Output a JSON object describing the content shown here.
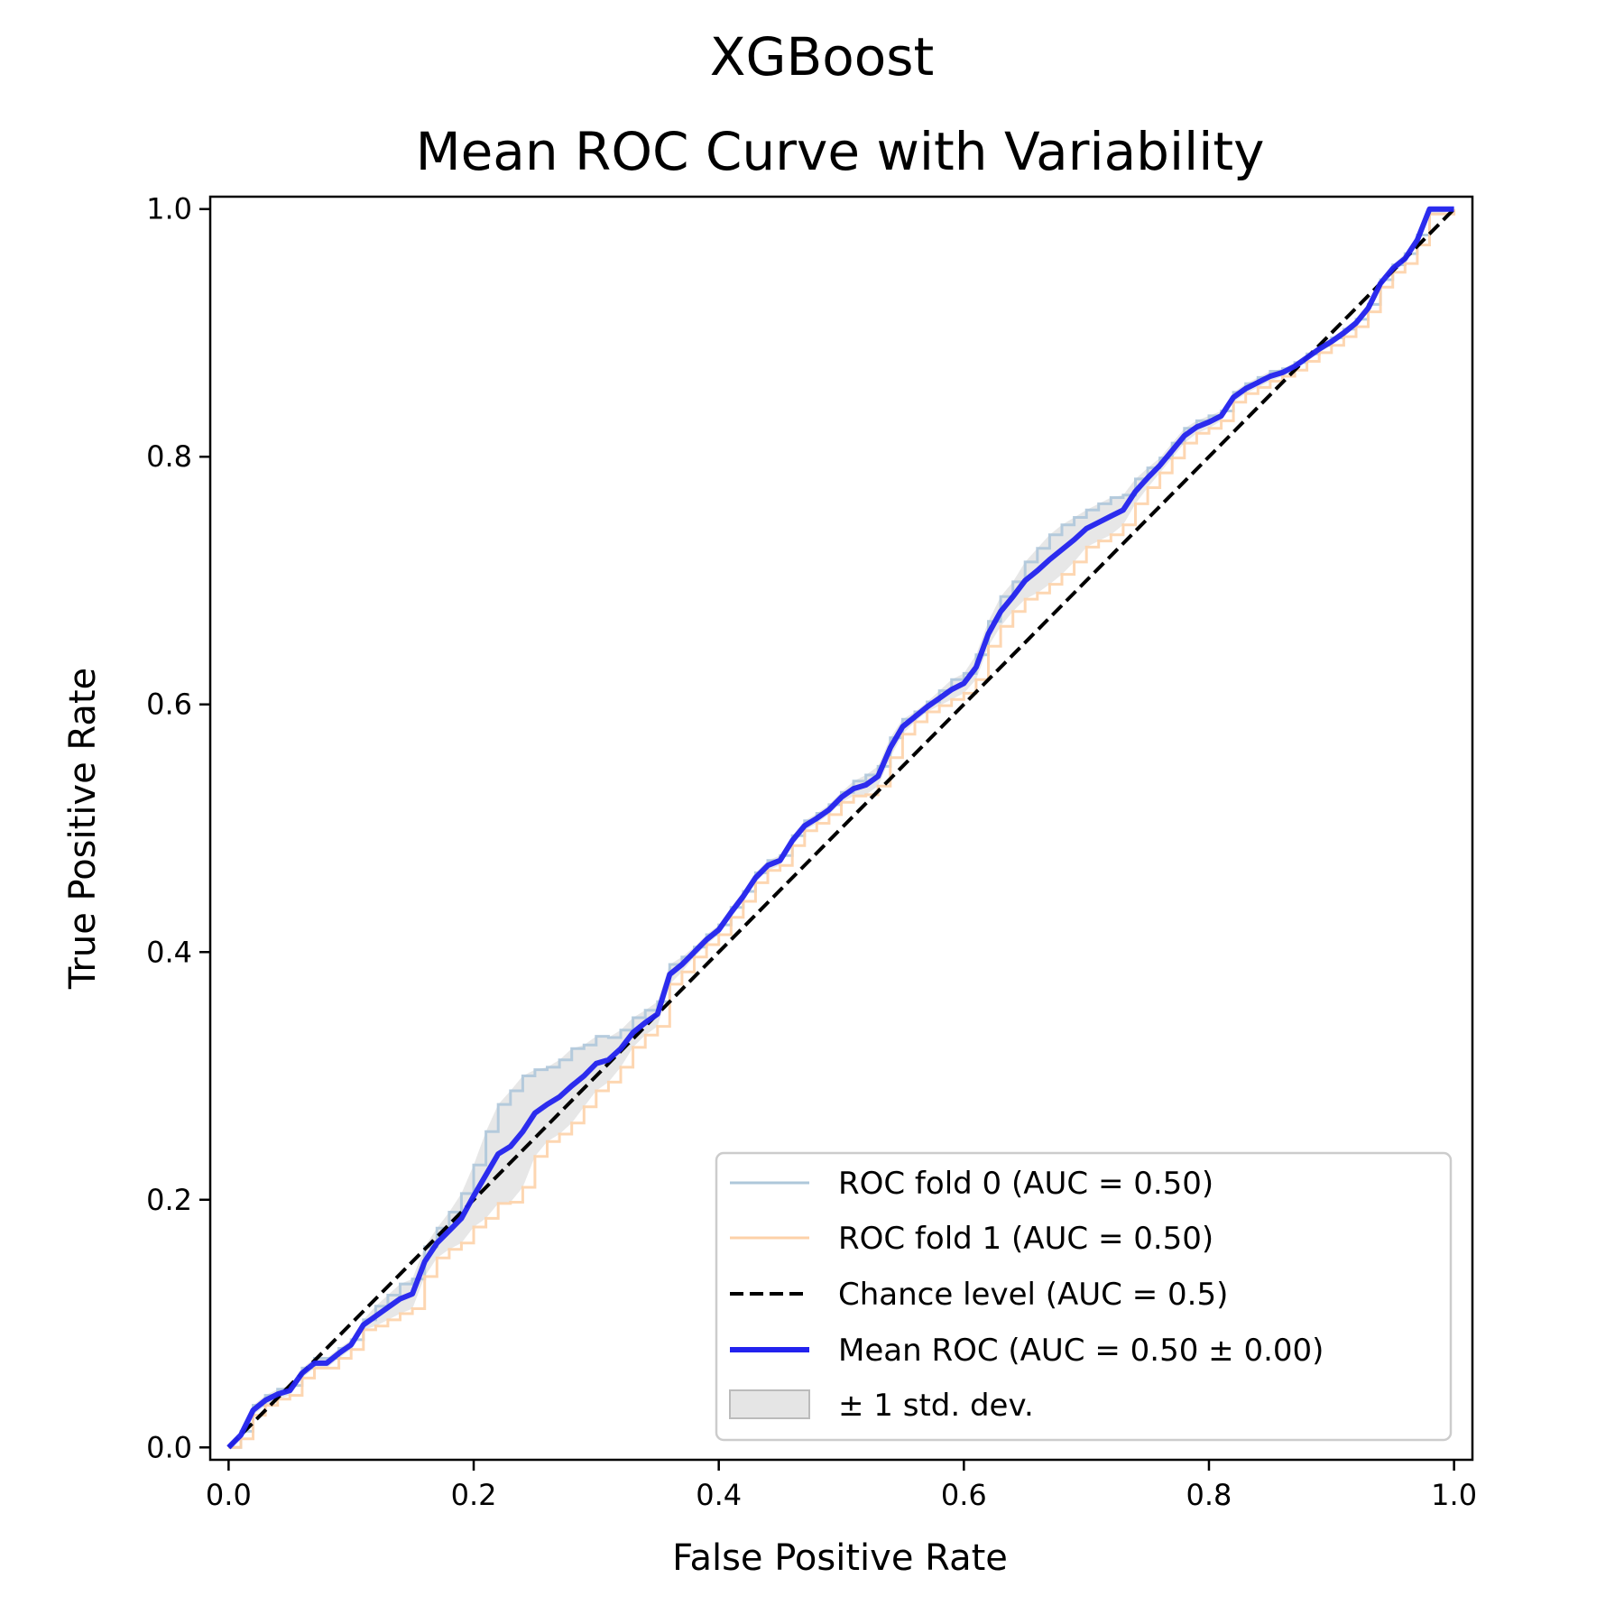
{
  "chart_data": {
    "type": "line",
    "title": "XGBoost",
    "subtitle": "Mean ROC Curve with Variability",
    "xlabel": "False Positive Rate",
    "ylabel": "True Positive Rate",
    "xlim": [
      -0.015,
      1.015
    ],
    "ylim": [
      -0.01,
      1.01
    ],
    "x_ticks": [
      0.0,
      0.2,
      0.4,
      0.6,
      0.8,
      1.0
    ],
    "y_ticks": [
      0.0,
      0.2,
      0.4,
      0.6,
      0.8,
      1.0
    ],
    "x_tick_labels": [
      "0.0",
      "0.2",
      "0.4",
      "0.6",
      "0.8",
      "1.0"
    ],
    "y_tick_labels": [
      "0.0",
      "0.2",
      "0.4",
      "0.6",
      "0.8",
      "1.0"
    ],
    "grid": false,
    "legend_position": "lower-right",
    "legend": [
      {
        "label": "ROC fold 0 (AUC = 0.50)",
        "style": "line",
        "color": "#aec7da"
      },
      {
        "label": "ROC fold 1 (AUC = 0.50)",
        "style": "line",
        "color": "#fdd1a8"
      },
      {
        "label": "Chance level (AUC = 0.5)",
        "style": "dashed",
        "color": "#000000"
      },
      {
        "label": "Mean ROC (AUC = 0.50 ± 0.00)",
        "style": "line",
        "color": "#2222ee"
      },
      {
        "label": "± 1 std. dev.",
        "style": "patch",
        "color": "#d3d3d3"
      }
    ],
    "chance_level": {
      "x": [
        0,
        1
      ],
      "y": [
        0,
        1
      ]
    },
    "mean_roc": {
      "x": [
        0,
        0.01,
        0.02,
        0.03,
        0.04,
        0.05,
        0.06,
        0.07,
        0.08,
        0.09,
        0.1,
        0.11,
        0.12,
        0.13,
        0.14,
        0.15,
        0.16,
        0.17,
        0.18,
        0.19,
        0.2,
        0.21,
        0.22,
        0.23,
        0.24,
        0.25,
        0.26,
        0.27,
        0.28,
        0.29,
        0.3,
        0.31,
        0.32,
        0.33,
        0.34,
        0.35,
        0.36,
        0.37,
        0.38,
        0.39,
        0.4,
        0.41,
        0.42,
        0.43,
        0.44,
        0.45,
        0.46,
        0.47,
        0.48,
        0.49,
        0.5,
        0.51,
        0.52,
        0.53,
        0.54,
        0.55,
        0.56,
        0.57,
        0.58,
        0.59,
        0.6,
        0.61,
        0.62,
        0.63,
        0.64,
        0.65,
        0.66,
        0.67,
        0.68,
        0.69,
        0.7,
        0.71,
        0.72,
        0.73,
        0.74,
        0.75,
        0.76,
        0.77,
        0.78,
        0.79,
        0.8,
        0.81,
        0.82,
        0.83,
        0.84,
        0.85,
        0.86,
        0.87,
        0.88,
        0.89,
        0.9,
        0.91,
        0.92,
        0.93,
        0.94,
        0.95,
        0.96,
        0.97,
        0.98,
        0.99,
        1.0
      ],
      "y": [
        0,
        0.01,
        0.03,
        0.038,
        0.043,
        0.046,
        0.06,
        0.068,
        0.068,
        0.076,
        0.083,
        0.099,
        0.106,
        0.113,
        0.12,
        0.124,
        0.15,
        0.165,
        0.175,
        0.185,
        0.203,
        0.22,
        0.237,
        0.243,
        0.255,
        0.27,
        0.277,
        0.283,
        0.292,
        0.3,
        0.31,
        0.313,
        0.322,
        0.335,
        0.343,
        0.35,
        0.382,
        0.39,
        0.4,
        0.41,
        0.418,
        0.432,
        0.445,
        0.46,
        0.47,
        0.474,
        0.49,
        0.502,
        0.508,
        0.515,
        0.525,
        0.532,
        0.535,
        0.542,
        0.565,
        0.582,
        0.59,
        0.598,
        0.605,
        0.612,
        0.617,
        0.63,
        0.657,
        0.675,
        0.687,
        0.7,
        0.708,
        0.717,
        0.725,
        0.733,
        0.742,
        0.747,
        0.752,
        0.757,
        0.772,
        0.783,
        0.793,
        0.805,
        0.817,
        0.824,
        0.828,
        0.833,
        0.848,
        0.855,
        0.86,
        0.865,
        0.868,
        0.873,
        0.88,
        0.887,
        0.893,
        0.9,
        0.908,
        0.92,
        0.94,
        0.952,
        0.96,
        0.975,
        1.0,
        1.0,
        1.0
      ]
    },
    "std_band_halfwidth": [
      0,
      0.003,
      0.004,
      0.004,
      0.004,
      0.004,
      0.004,
      0.004,
      0.004,
      0.004,
      0.004,
      0.004,
      0.008,
      0.01,
      0.012,
      0.012,
      0.012,
      0.012,
      0.015,
      0.02,
      0.025,
      0.035,
      0.04,
      0.045,
      0.045,
      0.035,
      0.03,
      0.03,
      0.03,
      0.025,
      0.022,
      0.018,
      0.015,
      0.012,
      0.01,
      0.01,
      0.008,
      0.006,
      0.004,
      0.004,
      0.004,
      0.004,
      0.004,
      0.004,
      0.004,
      0.004,
      0.004,
      0.004,
      0.004,
      0.004,
      0.004,
      0.006,
      0.008,
      0.008,
      0.008,
      0.006,
      0.004,
      0.004,
      0.006,
      0.008,
      0.008,
      0.01,
      0.01,
      0.012,
      0.012,
      0.015,
      0.018,
      0.02,
      0.02,
      0.018,
      0.015,
      0.015,
      0.015,
      0.012,
      0.01,
      0.008,
      0.006,
      0.006,
      0.006,
      0.005,
      0.005,
      0.004,
      0.004,
      0.004,
      0.004,
      0.004,
      0.003,
      0.003,
      0.003,
      0.003,
      0.003,
      0.003,
      0.003,
      0.003,
      0.003,
      0.003,
      0.004,
      0.004,
      0.004,
      0.004,
      0
    ]
  }
}
